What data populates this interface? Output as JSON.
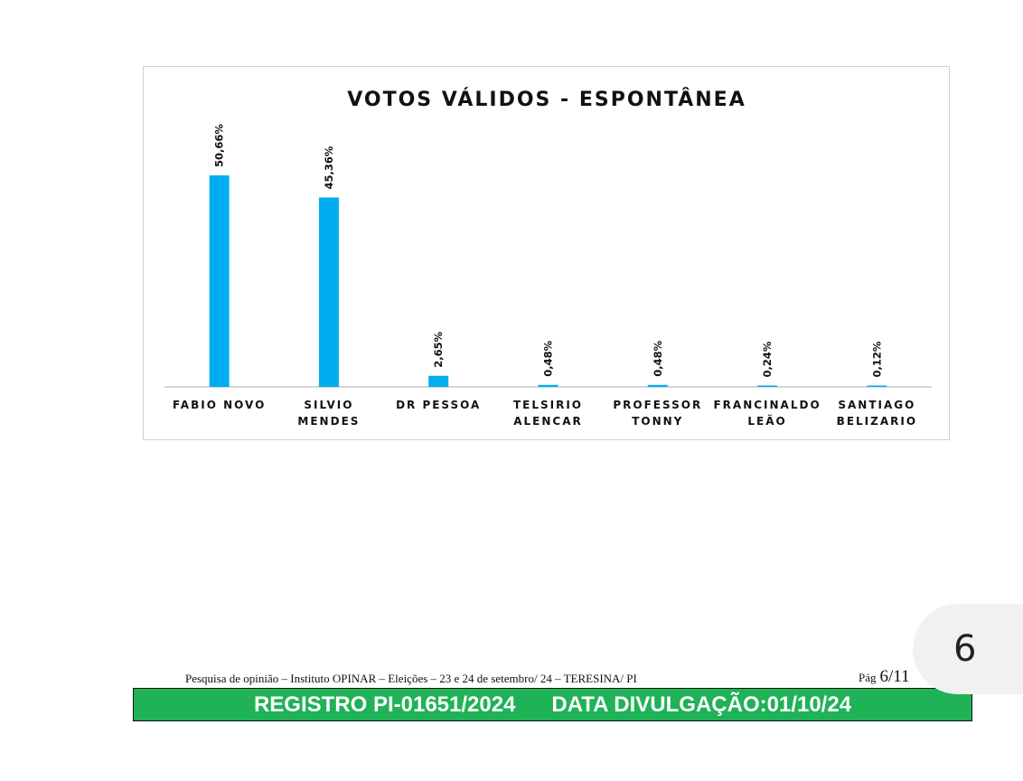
{
  "chart_data": {
    "type": "bar",
    "title": "VOTOS VÁLIDOS - ESPONTÂNEA",
    "categories": [
      [
        "FABIO NOVO"
      ],
      [
        "SILVIO",
        "MENDES"
      ],
      [
        "DR PESSOA"
      ],
      [
        "TELSIRIO",
        "ALENCAR"
      ],
      [
        "PROFESSOR",
        "TONNY"
      ],
      [
        "FRANCINALDO",
        "LEÃO"
      ],
      [
        "SANTIAGO",
        "BELIZARIO"
      ]
    ],
    "values": [
      50.66,
      45.36,
      2.65,
      0.48,
      0.48,
      0.24,
      0.12
    ],
    "value_labels": [
      "50,66%",
      "45,36%",
      "2,65%",
      "0,48%",
      "0,48%",
      "0,24%",
      "0,12%"
    ],
    "ylim": [
      0,
      50.66
    ],
    "bar_color": "#00aeef",
    "grid": false,
    "legend": "none"
  },
  "footer": {
    "caption": "Pesquisa de opinião – Instituto OPINAR – Eleições – 23 e  24 de setembro/ 24 – TERESINA/ PI",
    "page_label": "Pág",
    "page_value": "6/11",
    "registro": "REGISTRO PI-01651/2024",
    "divulgacao": "DATA DIVULGAÇÃO:01/10/24",
    "bar_color": "#1fb256"
  },
  "page_tab": {
    "number": "6"
  }
}
